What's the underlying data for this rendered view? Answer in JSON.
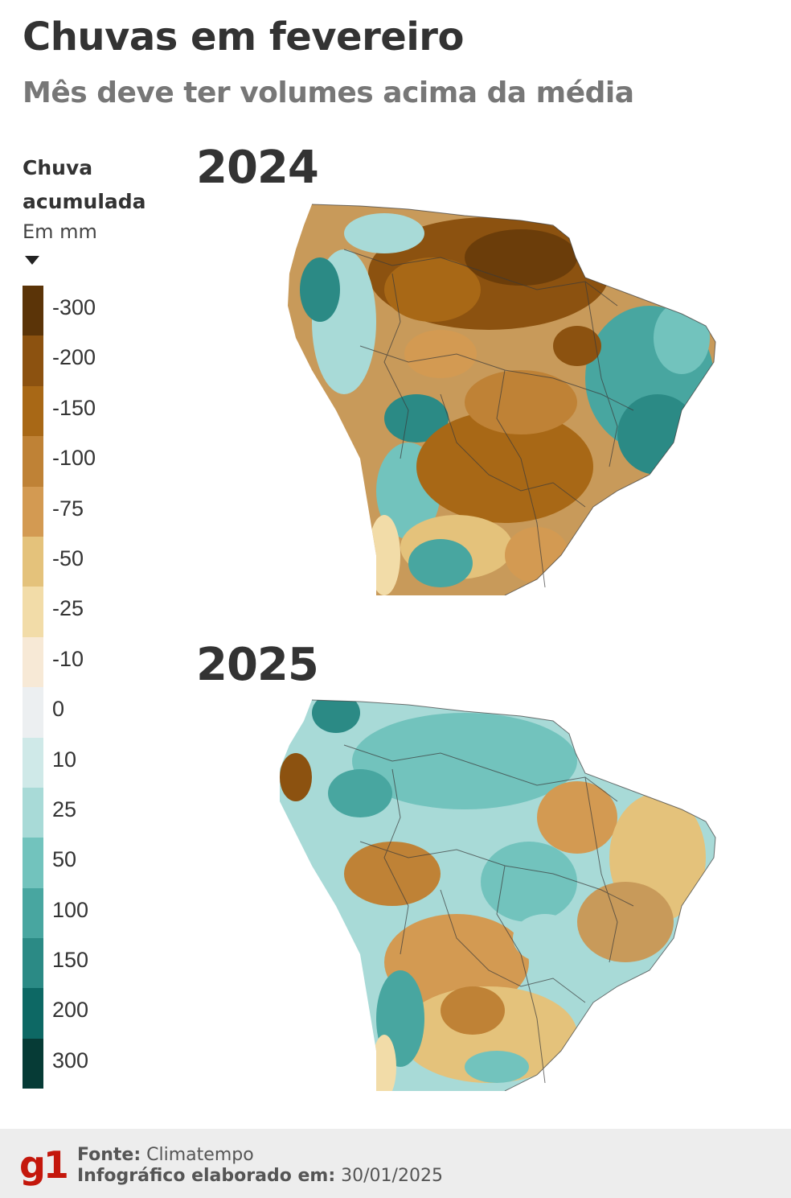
{
  "title": "Chuvas em fevereiro",
  "subtitle": "Mês deve ter volumes acima da média",
  "legend": {
    "title": "Chuva acumulada",
    "unit": "Em mm",
    "items": [
      {
        "label": "-300",
        "color": "#5b3408"
      },
      {
        "label": "-200",
        "color": "#8c5210"
      },
      {
        "label": "-150",
        "color": "#a86816"
      },
      {
        "label": "-100",
        "color": "#bf8236"
      },
      {
        "label": "-75",
        "color": "#d39a52"
      },
      {
        "label": "-50",
        "color": "#e4c27b"
      },
      {
        "label": "-25",
        "color": "#f2dca8"
      },
      {
        "label": "-10",
        "color": "#f7e9d6"
      },
      {
        "label": "0",
        "color": "#eceff1"
      },
      {
        "label": "10",
        "color": "#cfe9e8"
      },
      {
        "label": "25",
        "color": "#a8dad7"
      },
      {
        "label": "50",
        "color": "#72c3bd"
      },
      {
        "label": "100",
        "color": "#48a6a0"
      },
      {
        "label": "150",
        "color": "#2b8a85"
      },
      {
        "label": "200",
        "color": "#0d6864"
      },
      {
        "label": "300",
        "color": "#063b36"
      }
    ]
  },
  "maps": [
    {
      "year": "2024"
    },
    {
      "year": "2025"
    }
  ],
  "footer": {
    "source_label": "Fonte:",
    "source_value": "Climatempo",
    "date_label": "Infográfico elaborado em:",
    "date_value": "30/01/2025",
    "logo_text": "g1"
  }
}
